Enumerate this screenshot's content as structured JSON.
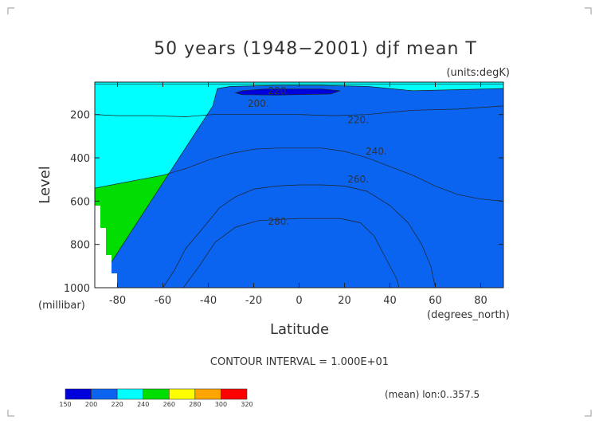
{
  "chart_data": {
    "type": "contour",
    "title": "50 years (1948−2001) djf mean T",
    "units_label": "(units:degK)",
    "xlabel": "Latitude",
    "x_unit_label": "(degrees_north)",
    "ylabel": "Level",
    "y_unit_label": "(millibar)",
    "xlim": [
      -90,
      90
    ],
    "ylim": [
      1000,
      50
    ],
    "x_ticks": [
      -80,
      -60,
      -40,
      -20,
      0,
      20,
      40,
      60,
      80
    ],
    "y_ticks": [
      200,
      400,
      600,
      800,
      1000
    ],
    "contour_interval_text": "CONTOUR INTERVAL = 1.000E+01",
    "footer_text": "(mean) lon:0..357.5",
    "contour_labels": [
      {
        "text": "220.",
        "lat": -9,
        "level": 90
      },
      {
        "text": "200.",
        "lat": -18,
        "level": 150
      },
      {
        "text": "220.",
        "lat": 26,
        "level": 225
      },
      {
        "text": "240.",
        "lat": 34,
        "level": 370
      },
      {
        "text": "260.",
        "lat": 26,
        "level": 500
      },
      {
        "text": "280.",
        "lat": -9,
        "level": 695
      }
    ],
    "levels": [
      150,
      200,
      220,
      240,
      260,
      280,
      300,
      320
    ],
    "colors": [
      "#0000dd",
      "#0a64f0",
      "#00ffff",
      "#00dd00",
      "#ffff00",
      "#ffa500",
      "#ff0000"
    ],
    "filled_regions": [
      {
        "band": "240-260",
        "boundary": [
          [
            -90,
            540
          ],
          [
            -80,
            520
          ],
          [
            -70,
            500
          ],
          [
            -60,
            480
          ],
          [
            -50,
            450
          ],
          [
            -40,
            410
          ],
          [
            -30,
            380
          ],
          [
            -20,
            360
          ],
          [
            -10,
            355
          ],
          [
            0,
            355
          ],
          [
            10,
            355
          ],
          [
            20,
            370
          ],
          [
            30,
            400
          ],
          [
            40,
            440
          ],
          [
            50,
            480
          ],
          [
            60,
            530
          ],
          [
            70,
            570
          ],
          [
            80,
            590
          ],
          [
            90,
            600
          ],
          [
            90,
            1000
          ],
          [
            -90,
            1000
          ]
        ]
      },
      {
        "band": "260-280",
        "boundary": [
          [
            -60,
            1000
          ],
          [
            -55,
            920
          ],
          [
            -50,
            820
          ],
          [
            -42,
            720
          ],
          [
            -35,
            630
          ],
          [
            -28,
            580
          ],
          [
            -20,
            545
          ],
          [
            -10,
            530
          ],
          [
            0,
            525
          ],
          [
            10,
            525
          ],
          [
            20,
            530
          ],
          [
            30,
            555
          ],
          [
            40,
            620
          ],
          [
            48,
            700
          ],
          [
            54,
            800
          ],
          [
            58,
            900
          ],
          [
            60,
            1000
          ]
        ]
      },
      {
        "band": "280-300",
        "boundary": [
          [
            -51,
            1000
          ],
          [
            -44,
            900
          ],
          [
            -37,
            790
          ],
          [
            -28,
            720
          ],
          [
            -18,
            690
          ],
          [
            0,
            680
          ],
          [
            18,
            680
          ],
          [
            27,
            700
          ],
          [
            33,
            760
          ],
          [
            38,
            860
          ],
          [
            43,
            960
          ],
          [
            44,
            1000
          ]
        ]
      },
      {
        "band": "220-240",
        "boundary": [
          [
            -90,
            1000
          ],
          [
            -90,
            60
          ],
          [
            90,
            60
          ],
          [
            90,
            160
          ],
          [
            70,
            175
          ],
          [
            50,
            180
          ],
          [
            30,
            200
          ],
          [
            15,
            205
          ],
          [
            0,
            200
          ],
          [
            -15,
            200
          ],
          [
            -30,
            200
          ],
          [
            -38,
            200
          ],
          [
            -50,
            210
          ],
          [
            -65,
            205
          ],
          [
            -80,
            205
          ],
          [
            -90,
            200
          ]
        ]
      },
      {
        "band": "200-220",
        "boundary": [
          [
            -38,
            160
          ],
          [
            -36,
            80
          ],
          [
            -30,
            70
          ],
          [
            -10,
            65
          ],
          [
            10,
            65
          ],
          [
            30,
            70
          ],
          [
            50,
            90
          ],
          [
            70,
            85
          ],
          [
            90,
            80
          ],
          [
            90,
            1000
          ],
          [
            -90,
            1000
          ]
        ]
      },
      {
        "band": "150-200",
        "boundary": [
          [
            -28,
            100
          ],
          [
            -25,
            90
          ],
          [
            -15,
            82
          ],
          [
            10,
            82
          ],
          [
            18,
            90
          ],
          [
            14,
            105
          ],
          [
            -10,
            110
          ],
          [
            -25,
            108
          ]
        ]
      }
    ]
  },
  "colorbar": {
    "tick_labels": [
      "150",
      "200",
      "220",
      "240",
      "260",
      "280",
      "300",
      "320"
    ]
  }
}
